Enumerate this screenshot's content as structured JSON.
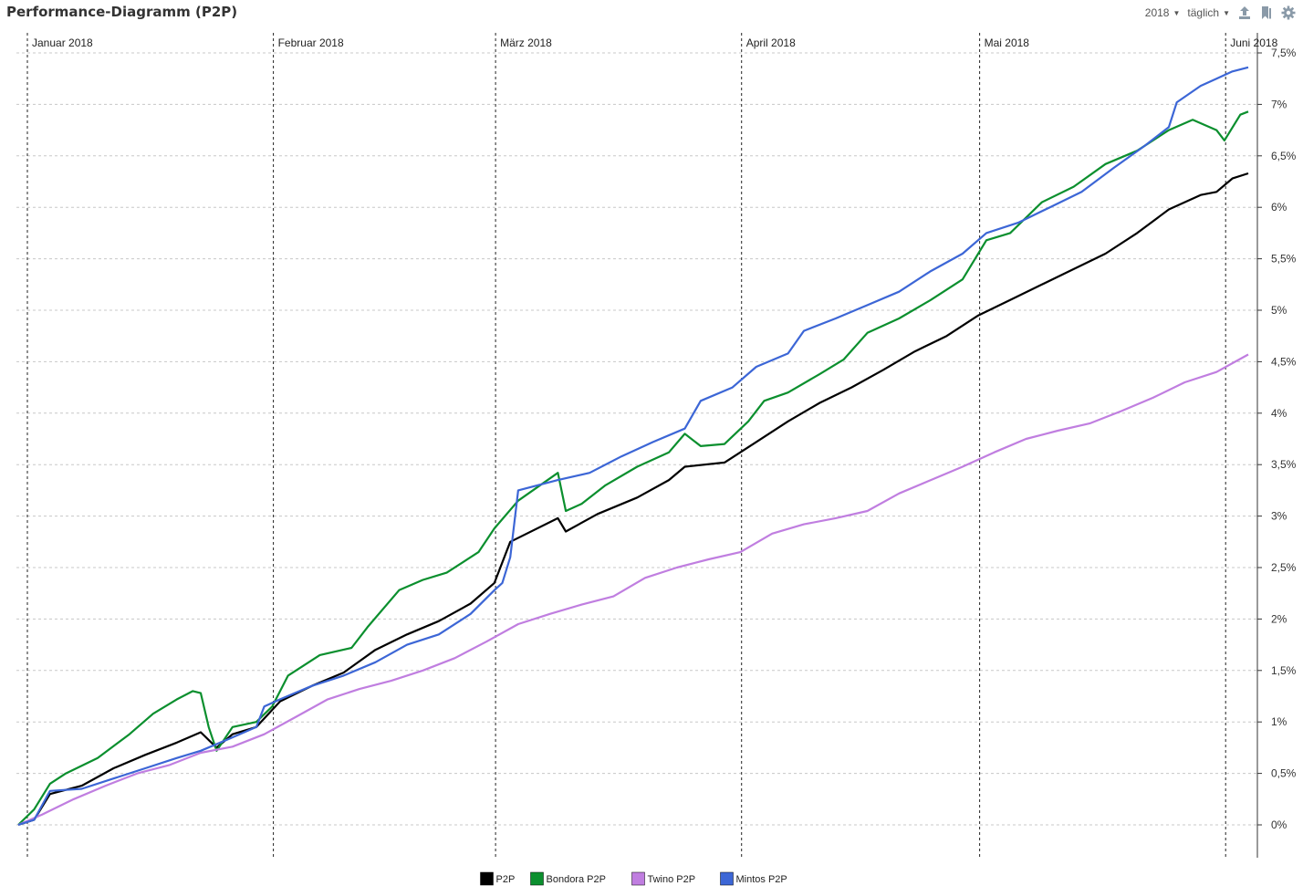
{
  "header": {
    "title": "Performance-Diagramm (P2P)",
    "year_select": "2018",
    "interval_select": "täglich",
    "icons": [
      "share-icon",
      "bookmark-icon",
      "gear-icon"
    ]
  },
  "chart_data": {
    "type": "line",
    "title": "",
    "xlabel": "",
    "ylabel": "",
    "x_range": [
      "2018-01-01",
      "2018-06-05"
    ],
    "ylim": [
      -0.003,
      0.075
    ],
    "y_ticks": [
      0,
      0.005,
      0.01,
      0.015,
      0.02,
      0.025,
      0.03,
      0.035,
      0.04,
      0.045,
      0.05,
      0.055,
      0.06,
      0.065,
      0.07,
      0.075
    ],
    "y_tick_labels": [
      "0%",
      "0,5%",
      "1%",
      "1,5%",
      "2%",
      "2,5%",
      "3%",
      "3,5%",
      "4%",
      "4,5%",
      "5%",
      "5,5%",
      "6%",
      "6,5%",
      "7%",
      "7,5%"
    ],
    "month_markers": [
      {
        "date": "2018-01-01",
        "label": "Januar 2018"
      },
      {
        "date": "2018-02-01",
        "label": "Februar 2018"
      },
      {
        "date": "2018-03-01",
        "label": "März 2018"
      },
      {
        "date": "2018-04-01",
        "label": "April 2018"
      },
      {
        "date": "2018-05-01",
        "label": "Mai 2018"
      },
      {
        "date": "2018-06-01",
        "label": "Juni 2018"
      }
    ],
    "grid": true,
    "legend_position": "bottom-center",
    "series": [
      {
        "name": "P2P",
        "color": "#000000",
        "points": [
          [
            "2018-01-01",
            0
          ],
          [
            "2018-01-03",
            0.0005
          ],
          [
            "2018-01-05",
            0.003
          ],
          [
            "2018-01-09",
            0.0038
          ],
          [
            "2018-01-13",
            0.0055
          ],
          [
            "2018-01-17",
            0.0068
          ],
          [
            "2018-01-21",
            0.008
          ],
          [
            "2018-01-24",
            0.009
          ],
          [
            "2018-01-26",
            0.0075
          ],
          [
            "2018-01-28",
            0.0088
          ],
          [
            "2018-01-31",
            0.0095
          ],
          [
            "2018-02-03",
            0.012
          ],
          [
            "2018-02-07",
            0.0135
          ],
          [
            "2018-02-11",
            0.0148
          ],
          [
            "2018-02-15",
            0.017
          ],
          [
            "2018-02-19",
            0.0185
          ],
          [
            "2018-02-23",
            0.0198
          ],
          [
            "2018-02-27",
            0.0215
          ],
          [
            "2018-03-02",
            0.0235
          ],
          [
            "2018-03-04",
            0.0275
          ],
          [
            "2018-03-10",
            0.0298
          ],
          [
            "2018-03-11",
            0.0285
          ],
          [
            "2018-03-15",
            0.0302
          ],
          [
            "2018-03-20",
            0.0318
          ],
          [
            "2018-03-24",
            0.0335
          ],
          [
            "2018-03-26",
            0.0348
          ],
          [
            "2018-03-31",
            0.0352
          ],
          [
            "2018-04-04",
            0.0372
          ],
          [
            "2018-04-08",
            0.0392
          ],
          [
            "2018-04-12",
            0.041
          ],
          [
            "2018-04-16",
            0.0425
          ],
          [
            "2018-04-20",
            0.0442
          ],
          [
            "2018-04-24",
            0.046
          ],
          [
            "2018-04-28",
            0.0475
          ],
          [
            "2018-05-02",
            0.0495
          ],
          [
            "2018-05-06",
            0.051
          ],
          [
            "2018-05-10",
            0.0525
          ],
          [
            "2018-05-14",
            0.054
          ],
          [
            "2018-05-18",
            0.0555
          ],
          [
            "2018-05-22",
            0.0575
          ],
          [
            "2018-05-26",
            0.0598
          ],
          [
            "2018-05-30",
            0.0612
          ],
          [
            "2018-06-01",
            0.0615
          ],
          [
            "2018-06-03",
            0.0628
          ],
          [
            "2018-06-05",
            0.0633
          ]
        ]
      },
      {
        "name": "Bondora P2P",
        "color": "#0b8f2e",
        "points": [
          [
            "2018-01-01",
            0
          ],
          [
            "2018-01-03",
            0.0015
          ],
          [
            "2018-01-05",
            0.004
          ],
          [
            "2018-01-07",
            0.005
          ],
          [
            "2018-01-11",
            0.0065
          ],
          [
            "2018-01-15",
            0.0088
          ],
          [
            "2018-01-18",
            0.0108
          ],
          [
            "2018-01-21",
            0.0122
          ],
          [
            "2018-01-23",
            0.013
          ],
          [
            "2018-01-24",
            0.0128
          ],
          [
            "2018-01-25",
            0.0095
          ],
          [
            "2018-01-26",
            0.0072
          ],
          [
            "2018-01-28",
            0.0095
          ],
          [
            "2018-01-31",
            0.01
          ],
          [
            "2018-02-02",
            0.0115
          ],
          [
            "2018-02-04",
            0.0145
          ],
          [
            "2018-02-08",
            0.0165
          ],
          [
            "2018-02-12",
            0.0172
          ],
          [
            "2018-02-14",
            0.0192
          ],
          [
            "2018-02-18",
            0.0228
          ],
          [
            "2018-02-21",
            0.0238
          ],
          [
            "2018-02-24",
            0.0245
          ],
          [
            "2018-02-28",
            0.0265
          ],
          [
            "2018-03-02",
            0.0288
          ],
          [
            "2018-03-05",
            0.0315
          ],
          [
            "2018-03-10",
            0.0342
          ],
          [
            "2018-03-11",
            0.0305
          ],
          [
            "2018-03-13",
            0.0312
          ],
          [
            "2018-03-16",
            0.033
          ],
          [
            "2018-03-20",
            0.0348
          ],
          [
            "2018-03-24",
            0.0362
          ],
          [
            "2018-03-26",
            0.038
          ],
          [
            "2018-03-28",
            0.0368
          ],
          [
            "2018-03-31",
            0.037
          ],
          [
            "2018-04-03",
            0.0392
          ],
          [
            "2018-04-05",
            0.0412
          ],
          [
            "2018-04-08",
            0.042
          ],
          [
            "2018-04-12",
            0.0438
          ],
          [
            "2018-04-15",
            0.0452
          ],
          [
            "2018-04-18",
            0.0478
          ],
          [
            "2018-04-22",
            0.0492
          ],
          [
            "2018-04-26",
            0.051
          ],
          [
            "2018-04-30",
            0.053
          ],
          [
            "2018-05-03",
            0.0568
          ],
          [
            "2018-05-06",
            0.0575
          ],
          [
            "2018-05-10",
            0.0605
          ],
          [
            "2018-05-14",
            0.062
          ],
          [
            "2018-05-18",
            0.0642
          ],
          [
            "2018-05-22",
            0.0655
          ],
          [
            "2018-05-26",
            0.0675
          ],
          [
            "2018-05-29",
            0.0685
          ],
          [
            "2018-06-01",
            0.0675
          ],
          [
            "2018-06-02",
            0.0665
          ],
          [
            "2018-06-04",
            0.069
          ],
          [
            "2018-06-05",
            0.0693
          ]
        ]
      },
      {
        "name": "Twino P2P",
        "color": "#c07ee0",
        "points": [
          [
            "2018-01-01",
            0
          ],
          [
            "2018-01-04",
            0.001
          ],
          [
            "2018-01-08",
            0.0025
          ],
          [
            "2018-01-12",
            0.0038
          ],
          [
            "2018-01-16",
            0.005
          ],
          [
            "2018-01-20",
            0.0058
          ],
          [
            "2018-01-24",
            0.007
          ],
          [
            "2018-01-28",
            0.0076
          ],
          [
            "2018-02-01",
            0.0088
          ],
          [
            "2018-02-05",
            0.0105
          ],
          [
            "2018-02-09",
            0.0122
          ],
          [
            "2018-02-13",
            0.0132
          ],
          [
            "2018-02-17",
            0.014
          ],
          [
            "2018-02-21",
            0.015
          ],
          [
            "2018-02-25",
            0.0162
          ],
          [
            "2018-03-01",
            0.0178
          ],
          [
            "2018-03-05",
            0.0195
          ],
          [
            "2018-03-09",
            0.0205
          ],
          [
            "2018-03-13",
            0.0214
          ],
          [
            "2018-03-17",
            0.0222
          ],
          [
            "2018-03-21",
            0.024
          ],
          [
            "2018-03-25",
            0.025
          ],
          [
            "2018-03-29",
            0.0258
          ],
          [
            "2018-04-02",
            0.0265
          ],
          [
            "2018-04-06",
            0.0283
          ],
          [
            "2018-04-10",
            0.0292
          ],
          [
            "2018-04-14",
            0.0298
          ],
          [
            "2018-04-18",
            0.0305
          ],
          [
            "2018-04-22",
            0.0322
          ],
          [
            "2018-04-26",
            0.0335
          ],
          [
            "2018-04-30",
            0.0348
          ],
          [
            "2018-05-04",
            0.0362
          ],
          [
            "2018-05-08",
            0.0375
          ],
          [
            "2018-05-12",
            0.0383
          ],
          [
            "2018-05-16",
            0.039
          ],
          [
            "2018-05-20",
            0.0402
          ],
          [
            "2018-05-24",
            0.0415
          ],
          [
            "2018-05-28",
            0.043
          ],
          [
            "2018-06-01",
            0.044
          ],
          [
            "2018-06-05",
            0.0457
          ]
        ]
      },
      {
        "name": "Mintos P2P",
        "color": "#3c66d6",
        "points": [
          [
            "2018-01-01",
            0
          ],
          [
            "2018-01-03",
            0.0005
          ],
          [
            "2018-01-05",
            0.0033
          ],
          [
            "2018-01-09",
            0.0035
          ],
          [
            "2018-01-13",
            0.0045
          ],
          [
            "2018-01-17",
            0.0055
          ],
          [
            "2018-01-21",
            0.0065
          ],
          [
            "2018-01-24",
            0.0072
          ],
          [
            "2018-01-28",
            0.0085
          ],
          [
            "2018-01-31",
            0.0095
          ],
          [
            "2018-02-01",
            0.0115
          ],
          [
            "2018-02-03",
            0.0122
          ],
          [
            "2018-02-07",
            0.0135
          ],
          [
            "2018-02-11",
            0.0145
          ],
          [
            "2018-02-15",
            0.0158
          ],
          [
            "2018-02-19",
            0.0175
          ],
          [
            "2018-02-23",
            0.0185
          ],
          [
            "2018-02-27",
            0.0205
          ],
          [
            "2018-03-02",
            0.0228
          ],
          [
            "2018-03-03",
            0.0235
          ],
          [
            "2018-03-04",
            0.026
          ],
          [
            "2018-03-05",
            0.0325
          ],
          [
            "2018-03-10",
            0.0335
          ],
          [
            "2018-03-14",
            0.0342
          ],
          [
            "2018-03-18",
            0.0358
          ],
          [
            "2018-03-22",
            0.0372
          ],
          [
            "2018-03-26",
            0.0385
          ],
          [
            "2018-03-28",
            0.0412
          ],
          [
            "2018-04-01",
            0.0425
          ],
          [
            "2018-04-04",
            0.0445
          ],
          [
            "2018-04-08",
            0.0458
          ],
          [
            "2018-04-10",
            0.048
          ],
          [
            "2018-04-14",
            0.0492
          ],
          [
            "2018-04-18",
            0.0505
          ],
          [
            "2018-04-22",
            0.0518
          ],
          [
            "2018-04-26",
            0.0538
          ],
          [
            "2018-04-30",
            0.0555
          ],
          [
            "2018-05-03",
            0.0575
          ],
          [
            "2018-05-07",
            0.0585
          ],
          [
            "2018-05-11",
            0.06
          ],
          [
            "2018-05-15",
            0.0615
          ],
          [
            "2018-05-19",
            0.0638
          ],
          [
            "2018-05-23",
            0.066
          ],
          [
            "2018-05-26",
            0.0678
          ],
          [
            "2018-05-27",
            0.0702
          ],
          [
            "2018-05-30",
            0.0718
          ],
          [
            "2018-06-01",
            0.0725
          ],
          [
            "2018-06-03",
            0.0732
          ],
          [
            "2018-06-05",
            0.0736
          ]
        ]
      }
    ]
  }
}
